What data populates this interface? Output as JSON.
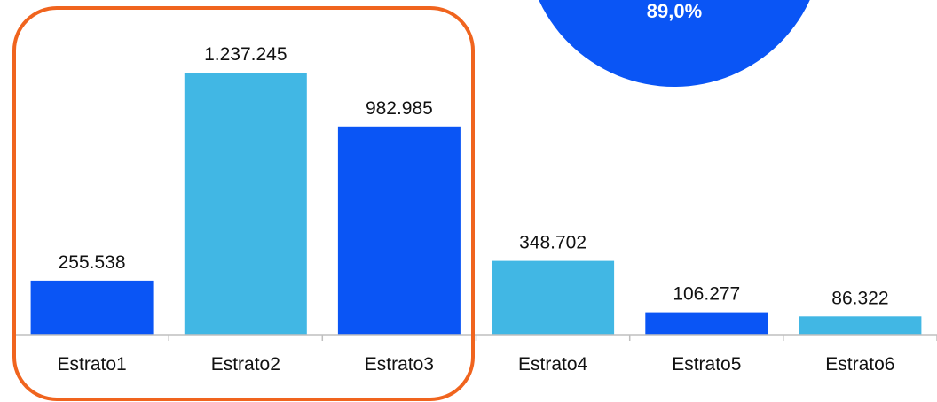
{
  "chart_data": {
    "type": "bar",
    "categories": [
      "Estrato1",
      "Estrato2",
      "Estrato3",
      "Estrato4",
      "Estrato5",
      "Estrato6"
    ],
    "values": [
      255538,
      1237245,
      982985,
      348702,
      106277,
      86322
    ],
    "value_labels": [
      "255.538",
      "1.237.245",
      "982.985",
      "348.702",
      "106.277",
      "86.322"
    ],
    "bar_colors": [
      "#0a55f5",
      "#41b7e4",
      "#0a55f5",
      "#41b7e4",
      "#0a55f5",
      "#41b7e4"
    ],
    "ylim": [
      0,
      1300000
    ],
    "grid": false,
    "highlight": {
      "categories": [
        "Estrato1",
        "Estrato2",
        "Estrato3"
      ],
      "color": "#f0641e"
    },
    "badge": {
      "text": "89,0%",
      "color": "#0a55f5",
      "text_color": "#ffffff"
    },
    "axis_color": "#bfbfbf"
  }
}
